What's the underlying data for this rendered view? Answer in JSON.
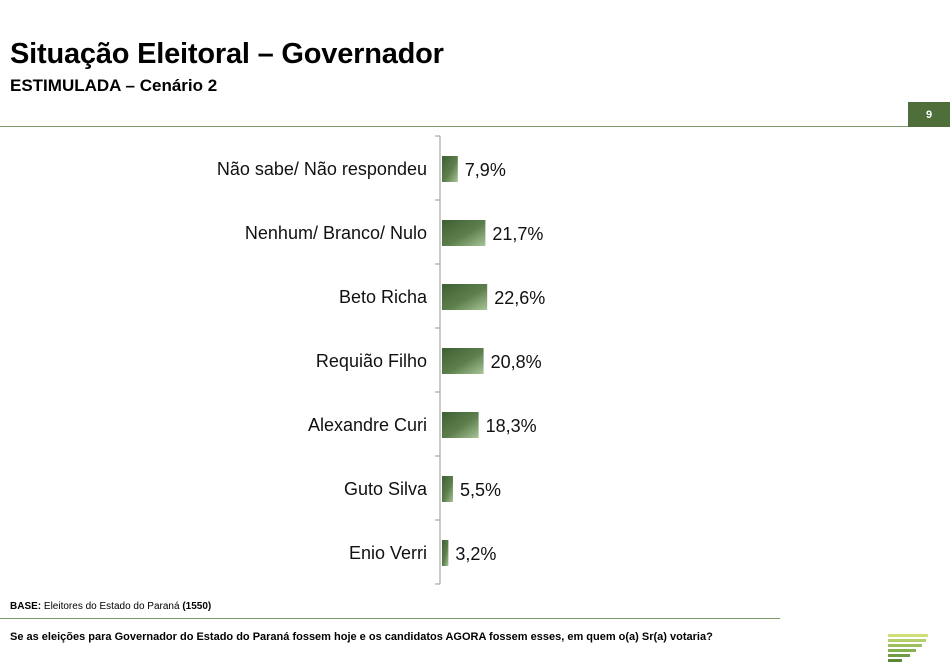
{
  "header": {
    "title": "Situação Eleitoral – Governador",
    "subtitle": "ESTIMULADA – Cenário 2",
    "page_number": "9"
  },
  "footer": {
    "base_label": "BASE:",
    "base_text": "Eleitores do Estado do Paraná",
    "base_count": "(1550)",
    "question": "Se as eleições para Governador do Estado do Paraná fossem hoje e os candidatos AGORA fossem esses, em quem o(a) Sr(a) votaria?"
  },
  "colors": {
    "bar_dark": "#3f5f33",
    "bar_light": "#a9c49a",
    "accent": "#4e6e3a"
  },
  "chart_data": {
    "type": "bar",
    "orientation": "horizontal",
    "title": "",
    "xlabel": "",
    "ylabel": "",
    "grid": false,
    "categories": [
      "Não sabe/ Não respondeu",
      "Nenhum/ Branco/ Nulo",
      "Beto Richa",
      "Requião Filho",
      "Alexandre Curi",
      "Guto Silva",
      "Enio Verri"
    ],
    "values": [
      7.9,
      21.7,
      22.6,
      20.8,
      18.3,
      5.5,
      3.2
    ],
    "value_labels": [
      "7,9%",
      "21,7%",
      "22,6%",
      "20,8%",
      "18,3%",
      "5,5%",
      "3,2%"
    ],
    "xlim": [
      0,
      100
    ]
  }
}
